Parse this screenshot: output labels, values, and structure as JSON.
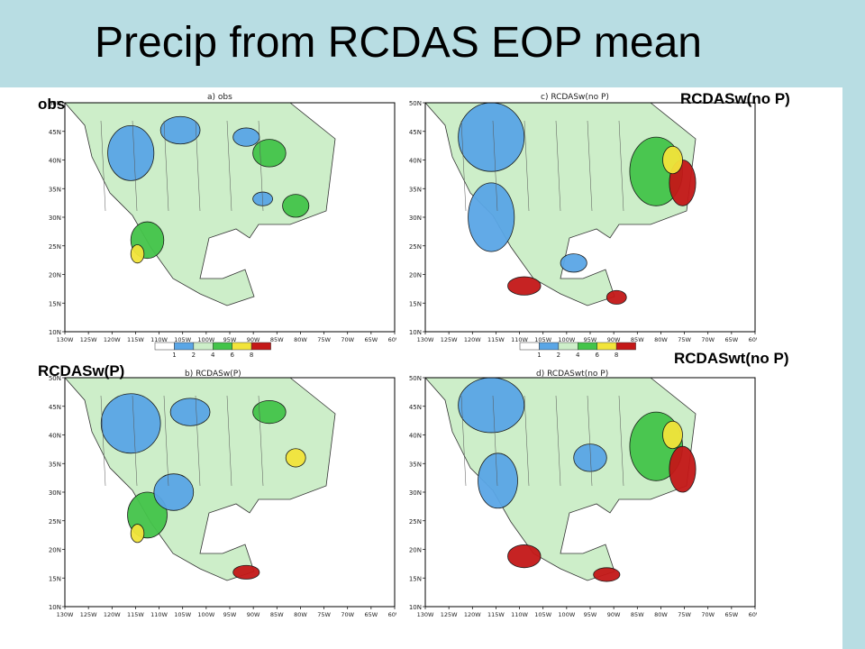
{
  "slide": {
    "title": "Precip from RCDAS EOP mean",
    "colors": {
      "band": "#b8dde3"
    }
  },
  "panel_labels": {
    "a": "obs",
    "b": "RCDASw(P)",
    "c": "RCDASw(no P)",
    "d": "RCDASwt(no P)"
  },
  "maps": [
    {
      "id": "a",
      "caption": "a) obs"
    },
    {
      "id": "b",
      "caption": "b) RCDASw(P)"
    },
    {
      "id": "c",
      "caption": "c) RCDASw(no P)"
    },
    {
      "id": "d",
      "caption": "d) RCDASwt(no P)"
    }
  ],
  "lat_labels": [
    "50N",
    "45N",
    "40N",
    "35N",
    "30N",
    "25N",
    "20N",
    "15N",
    "10N"
  ],
  "lon_labels": [
    "130W",
    "125W",
    "120W",
    "115W",
    "110W",
    "105W",
    "100W",
    "95W",
    "90W",
    "85W",
    "80W",
    "75W",
    "70W",
    "65W",
    "60W"
  ],
  "colorbar": {
    "ticks": [
      "1",
      "2",
      "4",
      "6",
      "8"
    ],
    "colors": [
      "#5aa6e6",
      "#cdeec9",
      "#44c44a",
      "#f2e43a",
      "#c41818"
    ]
  }
}
